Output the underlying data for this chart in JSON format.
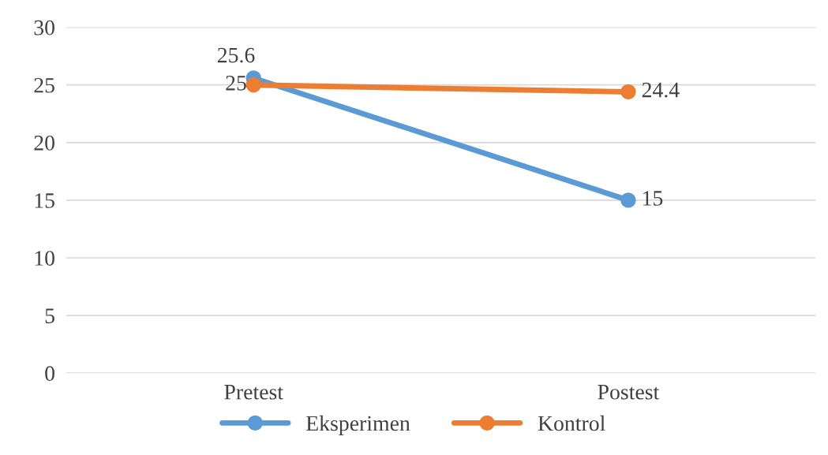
{
  "chart_data": {
    "type": "line",
    "categories": [
      "Pretest",
      "Postest"
    ],
    "series": [
      {
        "name": "Eksperimen",
        "color": "#5b9bd5",
        "values": [
          25.6,
          15
        ]
      },
      {
        "name": "Kontrol",
        "color": "#ed7d31",
        "values": [
          25,
          24.4
        ]
      }
    ],
    "ylim": [
      0,
      30
    ],
    "yticks": [
      0,
      5,
      10,
      15,
      20,
      25,
      30
    ],
    "grid": "y",
    "legend": "bottom",
    "marker": "circle",
    "line_style": "solid",
    "data_labels": true
  }
}
